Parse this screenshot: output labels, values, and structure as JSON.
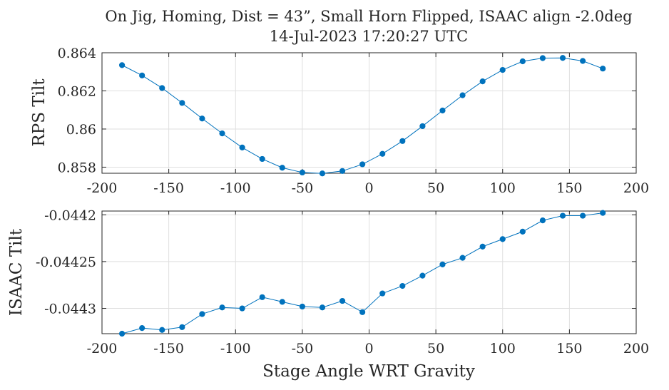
{
  "chart_data": [
    {
      "type": "line",
      "title": "On Jig, Homing, Dist = 43”, Small Horn Flipped, ISAAC align -2.0deg",
      "subtitle": "14-Jul-2023 17:20:27 UTC",
      "xlabel": "",
      "ylabel": "RPS Tilt",
      "xlim": [
        -200,
        200
      ],
      "ylim": [
        0.85768,
        0.864
      ],
      "xticks": [
        "-200",
        "-150",
        "-100",
        "-50",
        "0",
        "50",
        "100",
        "150",
        "200"
      ],
      "yticks": [
        "0.858",
        "0.86",
        "0.862",
        "0.864"
      ],
      "grid": true,
      "color": "#0072BD",
      "x": [
        -185,
        -170,
        -155,
        -140,
        -125,
        -110,
        -95,
        -80,
        -65,
        -50,
        -35,
        -20,
        -5,
        10,
        25,
        40,
        55,
        70,
        85,
        100,
        115,
        130,
        145,
        160,
        175
      ],
      "y": [
        0.86335,
        0.86281,
        0.86215,
        0.86137,
        0.86055,
        0.85977,
        0.85903,
        0.85843,
        0.85797,
        0.85772,
        0.85767,
        0.8578,
        0.85815,
        0.8587,
        0.85937,
        0.86015,
        0.86097,
        0.86177,
        0.8625,
        0.8631,
        0.86355,
        0.86372,
        0.86373,
        0.86357,
        0.86317
      ]
    },
    {
      "type": "line",
      "title": "",
      "xlabel": "Stage Angle WRT Gravity",
      "ylabel": "ISAAC Tilt",
      "xlim": [
        -200,
        200
      ],
      "ylim": [
        -0.044327,
        -0.044196
      ],
      "xticks": [
        "-200",
        "-150",
        "-100",
        "-50",
        "0",
        "50",
        "100",
        "150",
        "200"
      ],
      "yticks": [
        "-0.0443",
        "-0.04425",
        "-0.0442"
      ],
      "grid": true,
      "color": "#0072BD",
      "x": [
        -185,
        -170,
        -155,
        -140,
        -125,
        -110,
        -95,
        -80,
        -65,
        -50,
        -35,
        -20,
        -5,
        10,
        25,
        40,
        55,
        70,
        85,
        100,
        115,
        130,
        145,
        160,
        175
      ],
      "y": [
        -0.044327,
        -0.044321,
        -0.044323,
        -0.04432,
        -0.044306,
        -0.044299,
        -0.0443,
        -0.044288,
        -0.044293,
        -0.044298,
        -0.044299,
        -0.044292,
        -0.044304,
        -0.044284,
        -0.044276,
        -0.044265,
        -0.044253,
        -0.044246,
        -0.044234,
        -0.044226,
        -0.044218,
        -0.044206,
        -0.044201,
        -0.044201,
        -0.044198
      ]
    }
  ]
}
